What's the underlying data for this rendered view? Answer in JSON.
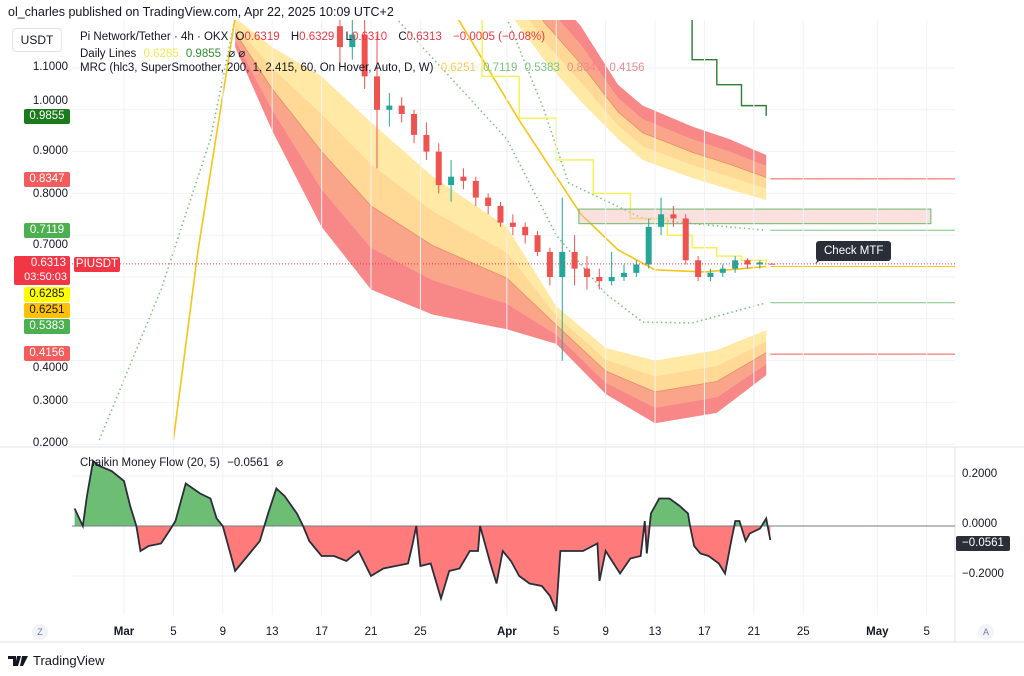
{
  "publisher": "ol_charles published on TradingView.com, Apr 22, 2025 10:09 UTC+2",
  "price_unit": "USDT",
  "legend": {
    "symbol": "Pi Network/Tether · 4h · OKX",
    "o_label": "O",
    "o": "0.6319",
    "h_label": "H",
    "h": "0.6329",
    "l_label": "L",
    "l": "0.6310",
    "c_label": "C",
    "c": "0.6313",
    "change": "−0.0005 (−0.08%)",
    "daily_lines": "Daily Lines",
    "daily_v1": "0.6285",
    "daily_v2": "0.9855",
    "daily_icons": "⌀ ⌀",
    "mrc": "MRC (hlc3, SuperSmoother, 200, 1, 2.415, 60, On Hover, Auto, D, W)",
    "mrc_v": [
      "0.6251",
      "0.7119",
      "0.5383",
      "0.8347",
      "0.4156"
    ]
  },
  "price_ticks": [
    "1.1000",
    "1.0000",
    "0.9000",
    "0.8000",
    "0.7000",
    "0.4000",
    "0.3000",
    "0.2000"
  ],
  "price_tick_values": [
    1.1,
    1.0,
    0.9,
    0.8,
    0.7,
    0.4,
    0.3,
    0.2
  ],
  "badges": {
    "daily_high": "0.9855",
    "upper_band": "0.8347",
    "upper_line": "0.7119",
    "last": "0.6313",
    "countdown": "03:50:03",
    "symbol_tag": "PIUSDT",
    "daily_low": "0.6285",
    "mean": "0.6251",
    "lower_line": "0.5383",
    "lower_band": "0.4156"
  },
  "annotation": "Check MTF",
  "cmf": {
    "title": "Chaikin Money Flow (20, 5)",
    "value": "−0.0561",
    "icon": "⌀",
    "ticks": [
      "0.2000",
      "0.0000",
      "−0.2000"
    ],
    "tick_values": [
      0.2,
      0,
      -0.2
    ],
    "last_badge": "−0.0561"
  },
  "x_ticks": [
    {
      "label": "Mar",
      "date": "2025-03-01",
      "bold": true
    },
    {
      "label": "5",
      "date": "2025-03-05"
    },
    {
      "label": "9",
      "date": "2025-03-09"
    },
    {
      "label": "13",
      "date": "2025-03-13"
    },
    {
      "label": "17",
      "date": "2025-03-17"
    },
    {
      "label": "21",
      "date": "2025-03-21"
    },
    {
      "label": "25",
      "date": "2025-03-25"
    },
    {
      "label": "Apr",
      "date": "2025-04-01",
      "bold": true
    },
    {
      "label": "5",
      "date": "2025-04-05"
    },
    {
      "label": "9",
      "date": "2025-04-09"
    },
    {
      "label": "13",
      "date": "2025-04-13"
    },
    {
      "label": "17",
      "date": "2025-04-17"
    },
    {
      "label": "21",
      "date": "2025-04-21"
    },
    {
      "label": "25",
      "date": "2025-04-25"
    },
    {
      "label": "May",
      "date": "2025-05-01",
      "bold": true
    },
    {
      "label": "5",
      "date": "2025-05-05"
    }
  ],
  "axis_buttons": {
    "left": "Z",
    "right": "A"
  },
  "footer": "TradingView",
  "colors": {
    "up": "#26a69a",
    "down": "#ef5350",
    "band_inner": "#ffe38a",
    "band_outer": "#f77b7b",
    "mean": "#f5c518",
    "daily_low_line": "#f5f04a",
    "daily_high_line": "#2e7d32",
    "green_line": "#7cc47f",
    "red_line": "#f05a5a",
    "cmf_pos": "#6dbd74",
    "cmf_neg": "#ff7b7b"
  },
  "chart_data": [
    {
      "type": "candlestick",
      "title": "Pi Network/Tether · 4h · OKX",
      "y_axis": {
        "position": "left",
        "scale": "linear",
        "range": [
          0.19,
          1.21
        ]
      },
      "x_range": [
        "2025-02-24",
        "2025-05-08"
      ],
      "grid": true,
      "candles_daily_approx": [
        [
          "2025-03-18",
          1.2,
          1.25,
          1.1,
          1.15
        ],
        [
          "2025-03-19",
          1.15,
          1.22,
          1.12,
          1.18
        ],
        [
          "2025-03-20",
          1.18,
          1.24,
          1.05,
          1.08
        ],
        [
          "2025-03-21",
          1.08,
          1.18,
          0.86,
          1.0
        ],
        [
          "2025-03-22",
          1.0,
          1.04,
          0.96,
          1.01
        ],
        [
          "2025-03-23",
          1.01,
          1.03,
          0.97,
          0.99
        ],
        [
          "2025-03-24",
          0.99,
          1.0,
          0.92,
          0.94
        ],
        [
          "2025-03-25",
          0.94,
          0.97,
          0.88,
          0.9
        ],
        [
          "2025-03-26",
          0.9,
          0.92,
          0.8,
          0.82
        ],
        [
          "2025-03-27",
          0.82,
          0.88,
          0.78,
          0.84
        ],
        [
          "2025-03-28",
          0.84,
          0.86,
          0.81,
          0.83
        ],
        [
          "2025-03-29",
          0.83,
          0.84,
          0.77,
          0.79
        ],
        [
          "2025-03-30",
          0.79,
          0.8,
          0.75,
          0.77
        ],
        [
          "2025-03-31",
          0.77,
          0.78,
          0.72,
          0.73
        ],
        [
          "2025-04-01",
          0.73,
          0.75,
          0.7,
          0.72
        ],
        [
          "2025-04-02",
          0.72,
          0.73,
          0.68,
          0.7
        ],
        [
          "2025-04-03",
          0.7,
          0.71,
          0.65,
          0.66
        ],
        [
          "2025-04-04",
          0.66,
          0.67,
          0.58,
          0.6
        ],
        [
          "2025-04-05",
          0.6,
          0.79,
          0.4,
          0.66
        ],
        [
          "2025-04-06",
          0.66,
          0.7,
          0.58,
          0.62
        ],
        [
          "2025-04-07",
          0.62,
          0.65,
          0.57,
          0.6
        ],
        [
          "2025-04-08",
          0.6,
          0.62,
          0.57,
          0.59
        ],
        [
          "2025-04-09",
          0.59,
          0.66,
          0.58,
          0.6
        ],
        [
          "2025-04-10",
          0.6,
          0.63,
          0.59,
          0.61
        ],
        [
          "2025-04-11",
          0.61,
          0.64,
          0.6,
          0.63
        ],
        [
          "2025-04-12",
          0.63,
          0.74,
          0.62,
          0.72
        ],
        [
          "2025-04-13",
          0.72,
          0.79,
          0.7,
          0.75
        ],
        [
          "2025-04-14",
          0.75,
          0.77,
          0.72,
          0.74
        ],
        [
          "2025-04-15",
          0.74,
          0.75,
          0.63,
          0.64
        ],
        [
          "2025-04-16",
          0.64,
          0.65,
          0.59,
          0.6
        ],
        [
          "2025-04-17",
          0.6,
          0.62,
          0.59,
          0.61
        ],
        [
          "2025-04-18",
          0.61,
          0.63,
          0.6,
          0.62
        ],
        [
          "2025-04-19",
          0.62,
          0.65,
          0.61,
          0.64
        ],
        [
          "2025-04-20",
          0.64,
          0.645,
          0.62,
          0.63
        ],
        [
          "2025-04-21",
          0.63,
          0.64,
          0.62,
          0.635
        ],
        [
          "2025-04-22",
          0.6319,
          0.6329,
          0.631,
          0.6313
        ]
      ],
      "lower_band": [
        [
          "2025-03-10",
          1.22,
          1.15
        ],
        [
          "2025-03-13",
          1.15,
          0.95
        ],
        [
          "2025-03-17",
          1.08,
          0.72
        ],
        [
          "2025-03-21",
          0.97,
          0.57
        ],
        [
          "2025-03-26",
          0.84,
          0.51
        ],
        [
          "2025-04-01",
          0.72,
          0.475
        ],
        [
          "2025-04-05",
          0.53,
          0.44
        ],
        [
          "2025-04-09",
          0.43,
          0.32
        ],
        [
          "2025-04-13",
          0.4,
          0.25
        ],
        [
          "2025-04-18",
          0.425,
          0.275
        ],
        [
          "2025-04-22",
          0.473,
          0.365
        ]
      ],
      "upper_band": [
        [
          "2025-04-01",
          1.24,
          1.45
        ],
        [
          "2025-04-04",
          1.12,
          1.3
        ],
        [
          "2025-04-07",
          1.02,
          1.2
        ],
        [
          "2025-04-10",
          0.93,
          1.06
        ],
        [
          "2025-04-12",
          0.88,
          1.01
        ],
        [
          "2025-04-16",
          0.837,
          0.96
        ],
        [
          "2025-04-19",
          0.81,
          0.93
        ],
        [
          "2025-04-22",
          0.784,
          0.892
        ]
      ],
      "mean_line": [
        [
          "2025-03-05",
          0.21
        ],
        [
          "2025-03-07",
          0.665
        ],
        [
          "2025-03-10",
          1.22
        ],
        null,
        [
          "2025-03-28",
          1.22
        ],
        [
          "2025-04-02",
          0.975
        ],
        [
          "2025-04-07",
          0.75
        ],
        [
          "2025-04-10",
          0.665
        ],
        [
          "2025-04-13",
          0.617
        ],
        [
          "2025-04-17",
          0.612
        ],
        [
          "2025-04-22",
          0.6251
        ]
      ],
      "upper_green_line": [
        [
          "2025-04-01",
          1.22
        ],
        [
          "2025-04-04",
          1.0
        ],
        [
          "2025-04-06",
          0.825
        ],
        [
          "2025-04-12",
          0.74
        ],
        [
          "2025-04-17",
          0.725
        ],
        [
          "2025-04-22",
          0.7119
        ]
      ],
      "lower_green_line": [
        [
          "2025-02-27",
          0.21
        ],
        [
          "2025-03-04",
          0.57
        ],
        [
          "2025-03-08",
          0.93
        ],
        [
          "2025-03-10",
          1.22
        ],
        null,
        [
          "2025-03-23",
          1.22
        ],
        [
          "2025-04-01",
          0.93
        ],
        [
          "2025-04-05",
          0.7
        ],
        [
          "2025-04-09",
          0.56
        ],
        [
          "2025-04-12",
          0.492
        ],
        [
          "2025-04-16",
          0.49
        ],
        [
          "2025-04-22",
          0.5383
        ]
      ],
      "daily_low_steps": [
        [
          "2025-03-26",
          1.22
        ],
        [
          "2025-03-30",
          1.08
        ],
        [
          "2025-04-02",
          0.98
        ],
        [
          "2025-04-05",
          0.88
        ],
        [
          "2025-04-08",
          0.8
        ],
        [
          "2025-04-11",
          0.74
        ],
        [
          "2025-04-14",
          0.7
        ],
        [
          "2025-04-16",
          0.67
        ],
        [
          "2025-04-18",
          0.65
        ],
        [
          "2025-04-20",
          0.64
        ],
        [
          "2025-04-22",
          0.6285
        ]
      ],
      "daily_high_steps": [
        [
          "2025-04-14",
          1.22
        ],
        [
          "2025-04-16",
          1.12
        ],
        [
          "2025-04-18",
          1.06
        ],
        [
          "2025-04-20",
          1.01
        ],
        [
          "2025-04-22",
          0.9855
        ]
      ],
      "level_lines": [
        0.8347,
        0.7119,
        0.6251,
        0.5383,
        0.4156
      ],
      "zone": {
        "from": "2025-04-06T20:00",
        "to": "2025-05-05T08:00",
        "low": 0.7275,
        "high": 0.7625
      },
      "last_price": 0.6313
    },
    {
      "type": "area",
      "title": "Chaikin Money Flow (20, 5)",
      "y_axis": {
        "position": "right",
        "range": [
          -0.36,
          0.3
        ]
      },
      "baseline": 0,
      "points": [
        [
          "2025-02-25T00:00",
          0.07
        ],
        [
          "2025-02-25T16:00",
          0.0
        ],
        [
          "2025-02-26T00:00",
          0.12
        ],
        [
          "2025-02-26T12:00",
          0.26
        ],
        [
          "2025-02-27T00:00",
          0.24
        ],
        [
          "2025-02-28T00:00",
          0.22
        ],
        [
          "2025-03-01T00:00",
          0.18
        ],
        [
          "2025-03-01T12:00",
          0.08
        ],
        [
          "2025-03-02T00:00",
          0.0
        ],
        [
          "2025-03-02T08:00",
          -0.1
        ],
        [
          "2025-03-03T00:00",
          -0.08
        ],
        [
          "2025-03-04T00:00",
          -0.07
        ],
        [
          "2025-03-04T16:00",
          -0.02
        ],
        [
          "2025-03-05T04:00",
          0.02
        ],
        [
          "2025-03-06T00:00",
          0.17
        ],
        [
          "2025-03-07T04:00",
          0.13
        ],
        [
          "2025-03-08T00:00",
          0.11
        ],
        [
          "2025-03-08T12:00",
          0.03
        ],
        [
          "2025-03-09T00:00",
          0.0
        ],
        [
          "2025-03-10T00:00",
          -0.18
        ],
        [
          "2025-03-11T00:00",
          -0.12
        ],
        [
          "2025-03-12T00:00",
          -0.06
        ],
        [
          "2025-03-12T16:00",
          0.05
        ],
        [
          "2025-03-13T08:00",
          0.15
        ],
        [
          "2025-03-14T00:00",
          0.12
        ],
        [
          "2025-03-15T00:00",
          0.05
        ],
        [
          "2025-03-15T12:00",
          0.0
        ],
        [
          "2025-03-16T00:00",
          -0.06
        ],
        [
          "2025-03-17T00:00",
          -0.12
        ],
        [
          "2025-03-18T00:00",
          -0.12
        ],
        [
          "2025-03-19T00:00",
          -0.14
        ],
        [
          "2025-03-20T00:00",
          -0.1
        ],
        [
          "2025-03-21T00:00",
          -0.2
        ],
        [
          "2025-03-22T00:00",
          -0.17
        ],
        [
          "2025-03-23T00:00",
          -0.16
        ],
        [
          "2025-03-24T00:00",
          -0.15
        ],
        [
          "2025-03-24T08:00",
          -0.08
        ],
        [
          "2025-03-24T16:00",
          0.0
        ],
        [
          "2025-03-25T00:00",
          -0.16
        ],
        [
          "2025-03-25T20:00",
          -0.15
        ],
        [
          "2025-03-26T16:00",
          -0.29
        ],
        [
          "2025-03-27T08:00",
          -0.18
        ],
        [
          "2025-03-28T04:00",
          -0.17
        ],
        [
          "2025-03-29T00:00",
          -0.1
        ],
        [
          "2025-03-29T16:00",
          -0.1
        ],
        [
          "2025-03-29T20:00",
          0.0
        ],
        [
          "2025-03-30T16:00",
          -0.15
        ],
        [
          "2025-03-31T04:00",
          -0.23
        ],
        [
          "2025-03-31T16:00",
          -0.1
        ],
        [
          "2025-04-01T08:00",
          -0.14
        ],
        [
          "2025-04-02T00:00",
          -0.2
        ],
        [
          "2025-04-02T20:00",
          -0.23
        ],
        [
          "2025-04-03T20:00",
          -0.24
        ],
        [
          "2025-04-04T12:00",
          -0.28
        ],
        [
          "2025-04-05T00:00",
          -0.34
        ],
        [
          "2025-04-05T08:00",
          -0.1
        ],
        [
          "2025-04-06T08:00",
          -0.1
        ],
        [
          "2025-04-07T04:00",
          -0.1
        ],
        [
          "2025-04-08T08:00",
          -0.07
        ],
        [
          "2025-04-08T12:00",
          -0.22
        ],
        [
          "2025-04-09T00:00",
          -0.1
        ],
        [
          "2025-04-10T04:00",
          -0.19
        ],
        [
          "2025-04-11T00:00",
          -0.13
        ],
        [
          "2025-04-11T20:00",
          -0.12
        ],
        [
          "2025-04-12T04:00",
          0.02
        ],
        [
          "2025-04-12T08:00",
          -0.11
        ],
        [
          "2025-04-12T16:00",
          0.05
        ],
        [
          "2025-04-13T08:00",
          0.11
        ],
        [
          "2025-04-14T04:00",
          0.11
        ],
        [
          "2025-04-15T00:00",
          0.08
        ],
        [
          "2025-04-15T16:00",
          0.05
        ],
        [
          "2025-04-15T20:00",
          0.0
        ],
        [
          "2025-04-16T04:00",
          -0.08
        ],
        [
          "2025-04-16T16:00",
          -0.11
        ],
        [
          "2025-04-17T08:00",
          -0.12
        ],
        [
          "2025-04-18T04:00",
          -0.15
        ],
        [
          "2025-04-18T16:00",
          -0.19
        ],
        [
          "2025-04-19T04:00",
          -0.06
        ],
        [
          "2025-04-19T12:00",
          0.02
        ],
        [
          "2025-04-19T20:00",
          0.02
        ],
        [
          "2025-04-20T08:00",
          -0.06
        ],
        [
          "2025-04-20T16:00",
          -0.03
        ],
        [
          "2025-04-21T12:00",
          -0.01
        ],
        [
          "2025-04-22T00:00",
          0.03
        ],
        [
          "2025-04-22T08:00",
          -0.0561
        ]
      ]
    }
  ]
}
